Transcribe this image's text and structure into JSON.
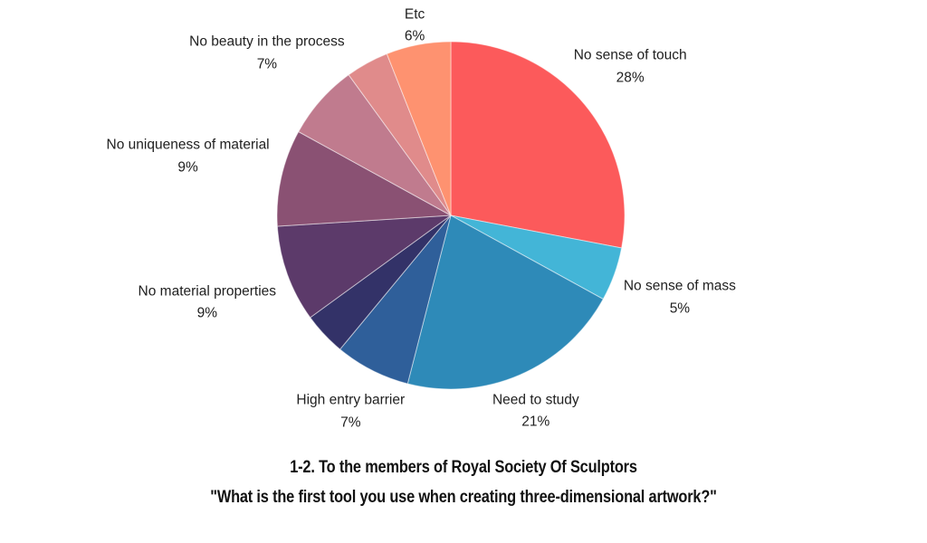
{
  "page": {
    "background_color": "#ffffff",
    "text_color": "#212121",
    "title_color": "#111111"
  },
  "chart_data": {
    "type": "pie",
    "title": "1-2. To the members of Royal Society Of Sculptors",
    "subtitle": "\"What is the first tool you use when creating three-dimensional artwork?\"",
    "title_lines": [
      "1-2. To the members of Royal Society Of Sculptors",
      "\"What is the first tool you use when creating three-dimensional artwork?\""
    ],
    "start_angle_deg": 0,
    "direction": "clockwise",
    "legend": "none",
    "slice_border_color": "#ffffff",
    "slices": [
      {
        "label": "No sense of touch",
        "percent": 28,
        "percent_label": "28%",
        "color": "#FC5A5B",
        "label_distance": 1.34
      },
      {
        "label": "No sense of mass",
        "percent": 5,
        "percent_label": "5%",
        "color": "#43B5D7",
        "label_distance": 1.4
      },
      {
        "label": "Need to study",
        "percent": 21,
        "percent_label": "21%",
        "color": "#2E8AB8",
        "label_distance": 1.23
      },
      {
        "label": "High entry barrier",
        "percent": 7,
        "percent_label": "7%",
        "color": "#2F5F9A",
        "label_distance": 1.27
      },
      {
        "label": "",
        "percent": 4,
        "percent_label": "",
        "color": "#333268",
        "label_distance": 0
      },
      {
        "label": "No material properties",
        "percent": 9,
        "percent_label": "9%",
        "color": "#5C3A6A",
        "label_distance": 1.49
      },
      {
        "label": "No uniqueness of material",
        "percent": 9,
        "percent_label": "9%",
        "color": "#8A5173",
        "label_distance": 1.55
      },
      {
        "label": "No beauty in the process",
        "percent": 7,
        "percent_label": "7%",
        "color": "#C07B8E",
        "label_distance": 1.41
      },
      {
        "label": "",
        "percent": 4,
        "percent_label": "",
        "color": "#E08B8B",
        "label_distance": 0
      },
      {
        "label": "Etc",
        "percent": 6,
        "percent_label": "6%",
        "color": "#FE9270",
        "label_distance": 1.11
      }
    ]
  }
}
